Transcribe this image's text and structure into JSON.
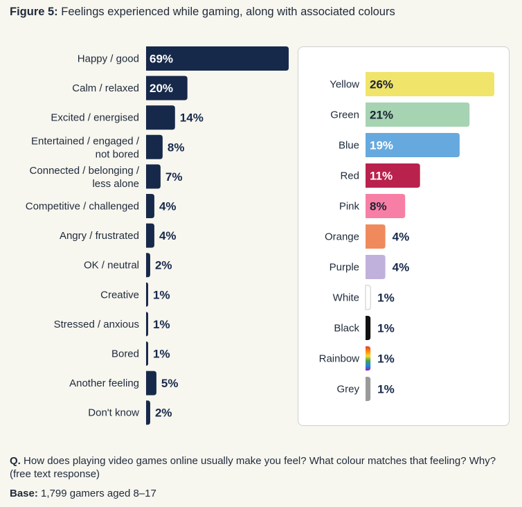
{
  "title": {
    "prefix": "Figure 5:",
    "text": "Feelings experienced while gaming, along with associated colours"
  },
  "footer": {
    "question_prefix": "Q.",
    "question": "How does playing video games online usually make you feel? What colour matches that feeling? Why? (free text response)",
    "base_prefix": "Base:",
    "base": "1,799 gamers aged 8–17"
  },
  "chart_data": [
    {
      "type": "bar",
      "orientation": "horizontal",
      "title": "",
      "categories": [
        [
          "Happy / good"
        ],
        [
          "Calm / relaxed"
        ],
        [
          "Excited / energised"
        ],
        [
          "Entertained / engaged /",
          "not bored"
        ],
        [
          "Connected / belonging /",
          "less alone"
        ],
        [
          "Competitive / challenged"
        ],
        [
          "Angry / frustrated"
        ],
        [
          "OK / neutral"
        ],
        [
          "Creative"
        ],
        [
          "Stressed / anxious"
        ],
        [
          "Bored"
        ],
        [
          "Another feeling"
        ],
        [
          "Don't know"
        ]
      ],
      "values": [
        69,
        20,
        14,
        8,
        7,
        4,
        4,
        2,
        1,
        1,
        1,
        5,
        2
      ],
      "labels": [
        "69%",
        "20%",
        "14%",
        "8%",
        "7%",
        "4%",
        "4%",
        "2%",
        "1%",
        "1%",
        "1%",
        "5%",
        "2%"
      ],
      "unit": "%",
      "color": "#17294a",
      "xlim": [
        0,
        69
      ]
    },
    {
      "type": "bar",
      "orientation": "horizontal",
      "title": "",
      "categories": [
        "Yellow",
        "Green",
        "Blue",
        "Red",
        "Pink",
        "Orange",
        "Purple",
        "White",
        "Black",
        "Rainbow",
        "Grey"
      ],
      "values": [
        26,
        21,
        19,
        11,
        8,
        4,
        4,
        1,
        1,
        1,
        1
      ],
      "labels": [
        "26%",
        "21%",
        "19%",
        "11%",
        "8%",
        "4%",
        "4%",
        "1%",
        "1%",
        "1%",
        "1%"
      ],
      "unit": "%",
      "colors": [
        "#f0e46a",
        "#a6d3b2",
        "#66a9de",
        "#b8224c",
        "#f77fa6",
        "#f08a5d",
        "#bfb1db",
        "#ffffff",
        "#111111",
        "rainbow",
        "#9a9a9a"
      ],
      "label_colors": [
        "#1a2333",
        "#1a2333",
        "#ffffff",
        "#ffffff",
        "#1a2333",
        "#1a2333",
        "#1a2333",
        "#1a2333",
        "#1a2333",
        "#1a2333",
        "#1a2333"
      ],
      "xlim": [
        0,
        26
      ]
    }
  ]
}
